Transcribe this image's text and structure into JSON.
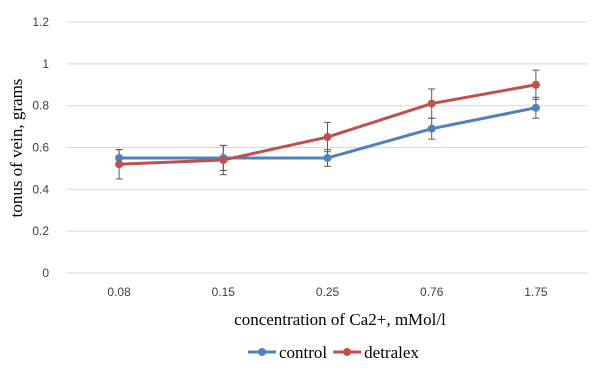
{
  "chart_data": {
    "type": "line",
    "categories": [
      "0.08",
      "0.15",
      "0.25",
      "0.76",
      "1.75"
    ],
    "xlabel": "concentration of Ca2+, mMol/l",
    "ylabel": "tonus of vein, grams",
    "ylim": [
      0,
      1.2
    ],
    "yticks": [
      "0",
      "0.2",
      "0.4",
      "0.6",
      "0.8",
      "1",
      "1.2"
    ],
    "grid": true,
    "legend_position": "bottom",
    "series": [
      {
        "name": "control",
        "color": "#4f81bd",
        "values": [
          0.55,
          0.55,
          0.55,
          0.69,
          0.79
        ],
        "errors": [
          0.04,
          0.06,
          0.04,
          0.05,
          0.05
        ]
      },
      {
        "name": "detralex",
        "color": "#c0504d",
        "values": [
          0.52,
          0.54,
          0.65,
          0.81,
          0.9
        ],
        "errors": [
          0.07,
          0.07,
          0.07,
          0.07,
          0.07
        ]
      }
    ]
  }
}
